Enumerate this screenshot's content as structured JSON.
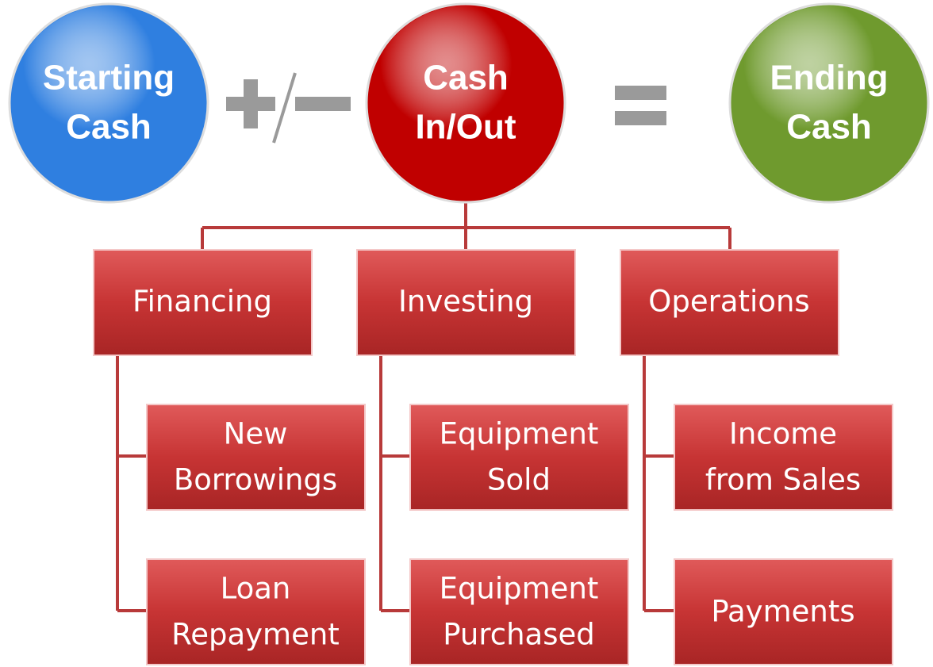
{
  "circles": [
    {
      "lines": [
        "Starting",
        "Cash"
      ],
      "color": "#2f7fe0"
    },
    {
      "lines": [
        "Cash",
        "In/Out"
      ],
      "color": "#c00000"
    },
    {
      "lines": [
        "Ending",
        "Cash"
      ],
      "color": "#6f9a2e"
    }
  ],
  "groups": [
    {
      "label": "Financing",
      "children": [
        {
          "lines": [
            "New",
            "Borrowings"
          ]
        },
        {
          "lines": [
            "Loan",
            "Repayment"
          ]
        }
      ]
    },
    {
      "label": "Investing",
      "children": [
        {
          "lines": [
            "Equipment",
            "Sold"
          ]
        },
        {
          "lines": [
            "Equipment",
            "Purchased"
          ]
        }
      ]
    },
    {
      "label": "Operations",
      "children": [
        {
          "lines": [
            "Income",
            "from Sales"
          ]
        },
        {
          "lines": [
            "Payments"
          ]
        }
      ]
    }
  ]
}
